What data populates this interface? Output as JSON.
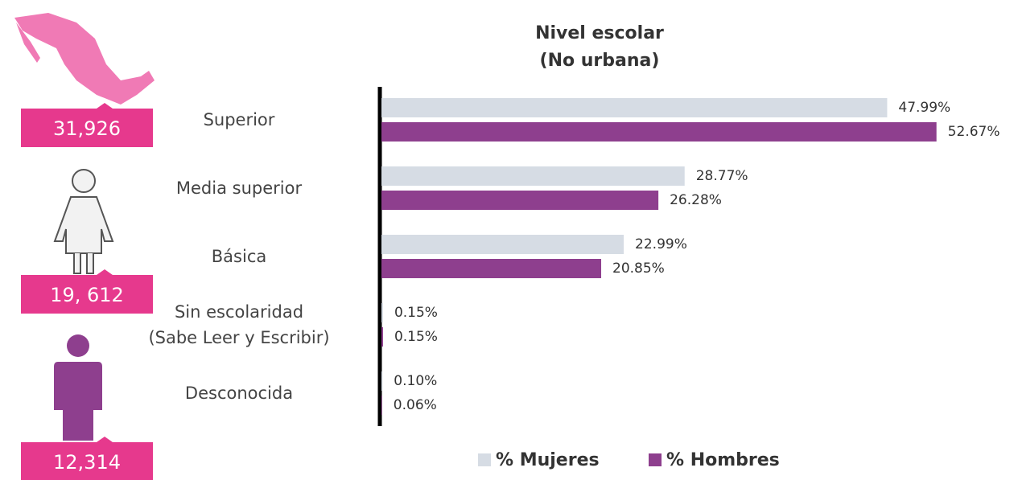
{
  "chart_data": {
    "type": "barh",
    "title": "Nivel escolar",
    "subtitle": "(No urbana)",
    "categories": [
      "Superior",
      "Media superior",
      "Básica",
      "Sin escolaridad\n(Sabe Leer y Escribir)",
      "Desconocida"
    ],
    "series": [
      {
        "name": "% Mujeres",
        "color": "#d6dce4",
        "values": [
          47.99,
          28.77,
          22.99,
          0.15,
          0.1
        ],
        "value_labels": [
          "47.99%",
          "28.77%",
          "22.99%",
          "0.15%",
          "0.10%"
        ]
      },
      {
        "name": "% Hombres",
        "color": "#8e3f8e",
        "values": [
          52.67,
          26.28,
          20.85,
          0.15,
          0.06
        ],
        "value_labels": [
          "52.67%",
          "26.28%",
          "20.85%",
          "0.15%",
          "0.06%"
        ]
      }
    ],
    "xlim": [
      0,
      53
    ]
  },
  "totals": [
    "31,926",
    "19, 612",
    "12,314"
  ]
}
